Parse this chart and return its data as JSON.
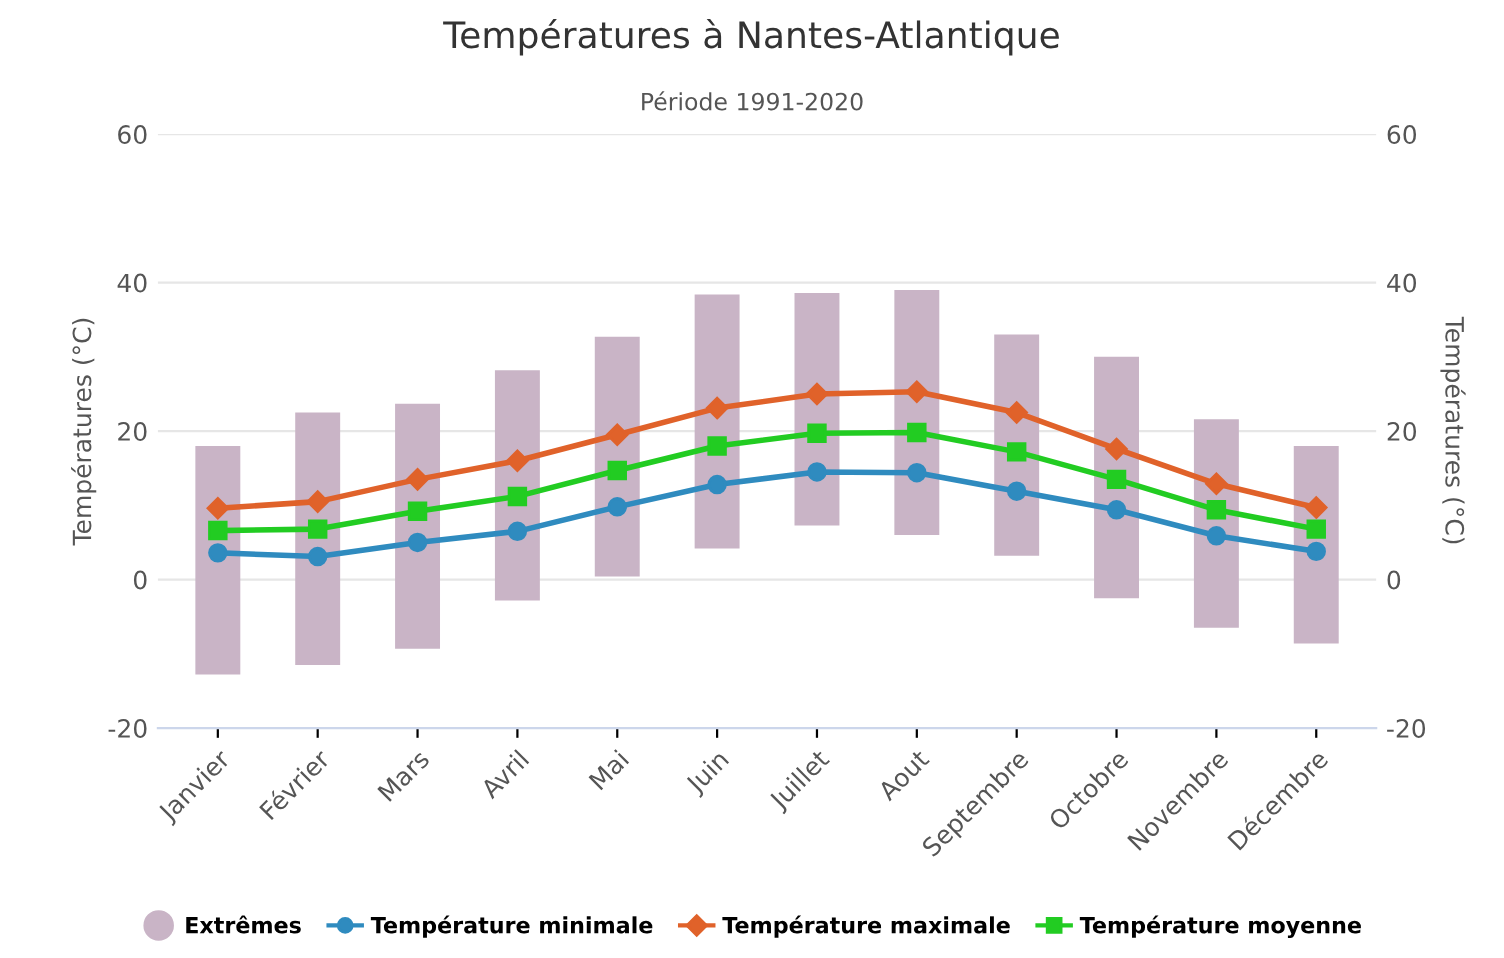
{
  "chart_data": {
    "type": "bar",
    "title": "Températures à Nantes-Atlantique",
    "subtitle": "Période 1991-2020",
    "ylabel": "Températures (°C)",
    "y2label": "Températures (°C)",
    "categories": [
      "Janvier",
      "Février",
      "Mars",
      "Avril",
      "Mai",
      "Juin",
      "Juillet",
      "Aout",
      "Septembre",
      "Octobre",
      "Novembre",
      "Décembre"
    ],
    "series": [
      {
        "name": "Extrêmes",
        "color": "#c9b4c6",
        "base": [
          -12.8,
          -11.5,
          -9.3,
          -2.8,
          0.4,
          4.2,
          7.3,
          6.0,
          3.2,
          -2.5,
          -6.5,
          -8.6
        ],
        "values": [
          30.8,
          34.0,
          33.0,
          31.0,
          32.3,
          34.2,
          31.3,
          33.0,
          29.8,
          32.5,
          28.1,
          26.6
        ]
      },
      {
        "name": "Température minimale",
        "type": "line",
        "color": "#2f8bbf",
        "marker": "circle",
        "values": [
          3.6,
          3.1,
          5.0,
          6.5,
          9.8,
          12.8,
          14.5,
          14.4,
          11.9,
          9.4,
          5.9,
          3.8
        ]
      },
      {
        "name": "Température maximale",
        "type": "line",
        "color": "#e0622a",
        "marker": "diamond",
        "values": [
          9.6,
          10.5,
          13.5,
          16.0,
          19.5,
          23.1,
          25.0,
          25.3,
          22.5,
          17.6,
          12.9,
          9.7
        ]
      },
      {
        "name": "Température moyenne",
        "type": "line",
        "color": "#22cc22",
        "marker": "square",
        "values": [
          6.6,
          6.8,
          9.2,
          11.2,
          14.7,
          18.0,
          19.7,
          19.8,
          17.2,
          13.5,
          9.4,
          6.8
        ]
      }
    ],
    "ylim": [
      -20,
      60
    ],
    "yticks": [
      -20,
      0,
      20,
      40,
      60
    ],
    "y2lim": [
      -20,
      60
    ],
    "y2ticks": [
      -20,
      0,
      20,
      40,
      60
    ],
    "grid": "y",
    "legend": "bottom"
  }
}
